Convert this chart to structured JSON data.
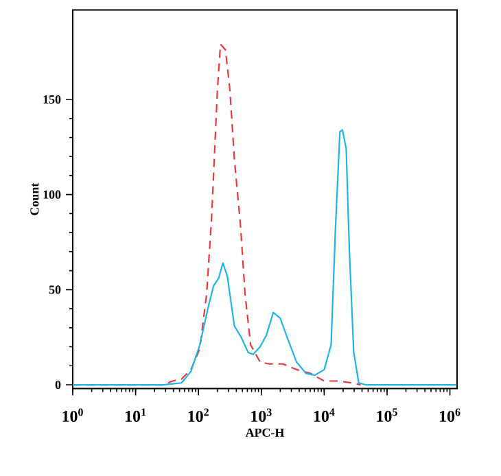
{
  "chart_data": {
    "type": "line",
    "xlabel": "APC-H",
    "ylabel": "Count",
    "log": "x",
    "xlim": [
      1,
      1300000
    ],
    "ylim": [
      -2,
      197
    ],
    "xticks": [
      {
        "value": 1,
        "label": "10$^{0}$"
      },
      {
        "value": 10,
        "label": "10$^{1}$"
      },
      {
        "value": 100,
        "label": "10$^{2}$"
      },
      {
        "value": 1000,
        "label": "10$^{3}$"
      },
      {
        "value": 10000,
        "label": "10$^{4}$"
      },
      {
        "value": 100000,
        "label": "10$^{5}$"
      },
      {
        "value": 1000000,
        "label": "10$^{6}$"
      }
    ],
    "yticks": [
      0,
      50,
      100,
      150
    ],
    "marker": "none",
    "grid": false,
    "series": [
      {
        "color": "#e8383d",
        "line_style": "dashed",
        "x": [
          1,
          27.5,
          38.9,
          53.7,
          75.9,
          105,
          135,
          162,
          200,
          224,
          269,
          316,
          372,
          468,
          550,
          676,
          955,
          1318,
          2188,
          3631,
          6026,
          10000,
          16600,
          27540,
          38020
        ],
        "values": [
          0,
          0,
          2,
          3,
          8,
          19,
          48,
          88,
          155,
          179,
          176,
          155,
          119,
          83,
          48,
          21,
          12,
          11,
          11,
          8,
          6,
          2,
          2,
          1,
          0
        ]
      },
      {
        "color": "#1eb4e6",
        "line_style": "solid",
        "x": [
          1,
          27.5,
          53.7,
          75.9,
          105,
          148,
          174,
          209,
          245,
          288,
          372,
          479,
          617,
          741,
          955,
          1202,
          1549,
          1995,
          2570,
          3631,
          5129,
          7079,
          10000,
          12880,
          15140,
          17780,
          19500,
          22390,
          25120,
          29510,
          35480,
          45710,
          1259000
        ],
        "values": [
          0,
          0,
          1,
          7,
          21,
          43,
          52,
          56,
          64,
          57,
          31,
          25,
          17,
          16,
          20,
          26,
          38,
          35,
          25,
          12,
          6,
          5,
          8,
          21,
          83,
          133,
          134,
          124,
          71,
          17,
          1,
          0,
          0
        ]
      }
    ]
  }
}
